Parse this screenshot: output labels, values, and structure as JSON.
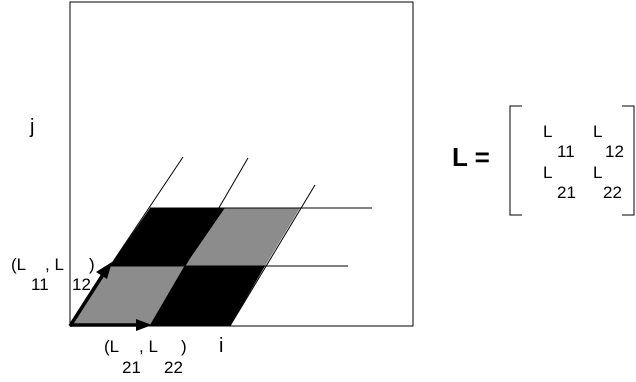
{
  "axes": {
    "j": "j",
    "i": "i"
  },
  "vector1": {
    "open": "(L",
    "sub_a": "11",
    "comma": ", L",
    "sub_b": "12",
    "close": ")"
  },
  "vector2": {
    "open": "(L",
    "sub_a": "21",
    "comma": ", L",
    "sub_b": "22",
    "close": ")"
  },
  "equation": {
    "lhs": "L ="
  },
  "matrix": [
    [
      {
        "letter": "L",
        "sub": "11"
      },
      {
        "letter": "L",
        "sub": "12"
      }
    ],
    [
      {
        "letter": "L",
        "sub": "21"
      },
      {
        "letter": "L",
        "sub": "22"
      }
    ]
  ],
  "colors": {
    "dark_cell": "#000000",
    "light_cell": "#8c8c8c",
    "line": "#000000"
  }
}
